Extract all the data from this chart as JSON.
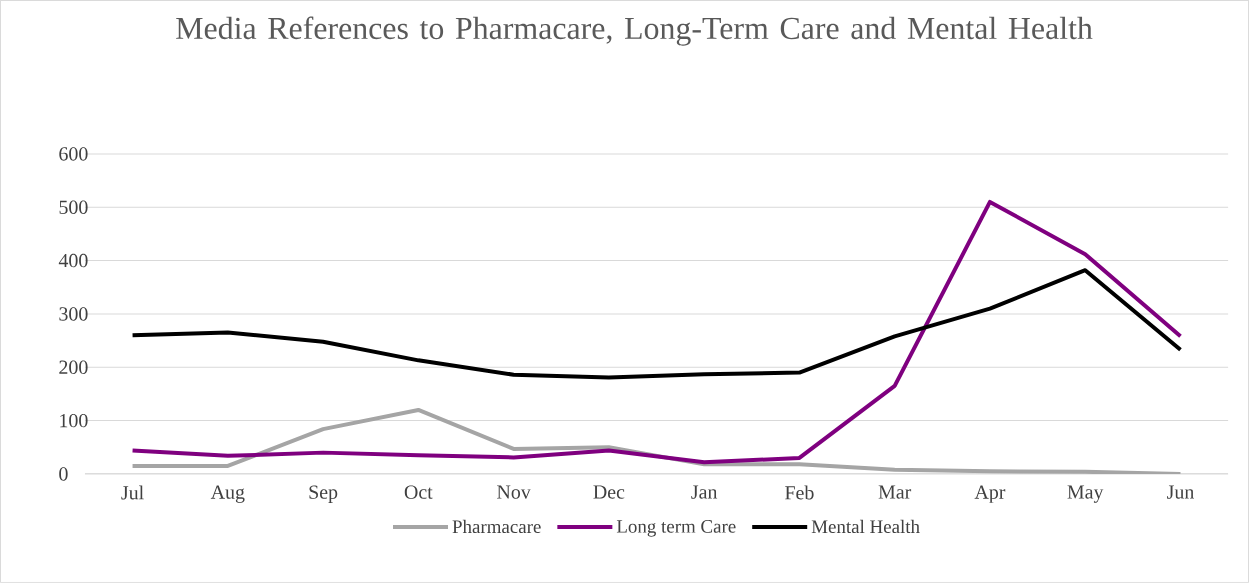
{
  "chart_data": {
    "type": "line",
    "title": "Media References to Pharmacare, Long-Term Care and Mental Health",
    "categories": [
      "Jul",
      "Aug",
      "Sep",
      "Oct",
      "Nov",
      "Dec",
      "Jan",
      "Feb",
      "Mar",
      "Apr",
      "May",
      "Jun"
    ],
    "series": [
      {
        "name": "Pharmacare",
        "color": "#a5a5a5",
        "values": [
          15,
          15,
          84,
          120,
          47,
          50,
          18,
          18,
          8,
          5,
          4,
          0
        ]
      },
      {
        "name": "Long term Care",
        "color": "#7f007f",
        "values": [
          44,
          34,
          40,
          35,
          31,
          44,
          22,
          30,
          165,
          510,
          412,
          258
        ]
      },
      {
        "name": "Mental Health",
        "color": "#000000",
        "values": [
          260,
          265,
          248,
          213,
          186,
          181,
          187,
          190,
          258,
          310,
          382,
          233
        ]
      }
    ],
    "ylim": [
      0,
      600
    ],
    "yticks": [
      0,
      100,
      200,
      300,
      400,
      500,
      600
    ],
    "grid": "y",
    "legend": "bottom",
    "marker": "none",
    "line_style": "solid"
  }
}
